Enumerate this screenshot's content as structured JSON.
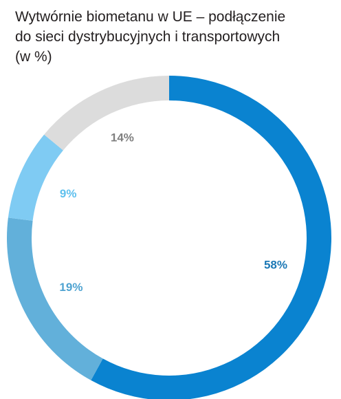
{
  "chart_data": {
    "type": "pie",
    "variant": "donut",
    "title_lines": [
      "Wytwórnie biometanu w UE – podłączenie",
      "do sieci dystrybucyjnych i transportowych",
      "(w %)"
    ],
    "slices": [
      {
        "value": 58,
        "label": "58%",
        "color": "#0a83d0",
        "label_color": "#1b78b5"
      },
      {
        "value": 19,
        "label": "19%",
        "color": "#62b0da",
        "label_color": "#4fa3d1"
      },
      {
        "value": 9,
        "label": "9%",
        "color": "#7fcbf3",
        "label_color": "#5ec0ee"
      },
      {
        "value": 14,
        "label": "14%",
        "color": "#dcdcdc",
        "label_color": "#7f7f7f"
      }
    ],
    "start": "top (12 o'clock)",
    "direction": "clockwise",
    "legend": "none"
  }
}
